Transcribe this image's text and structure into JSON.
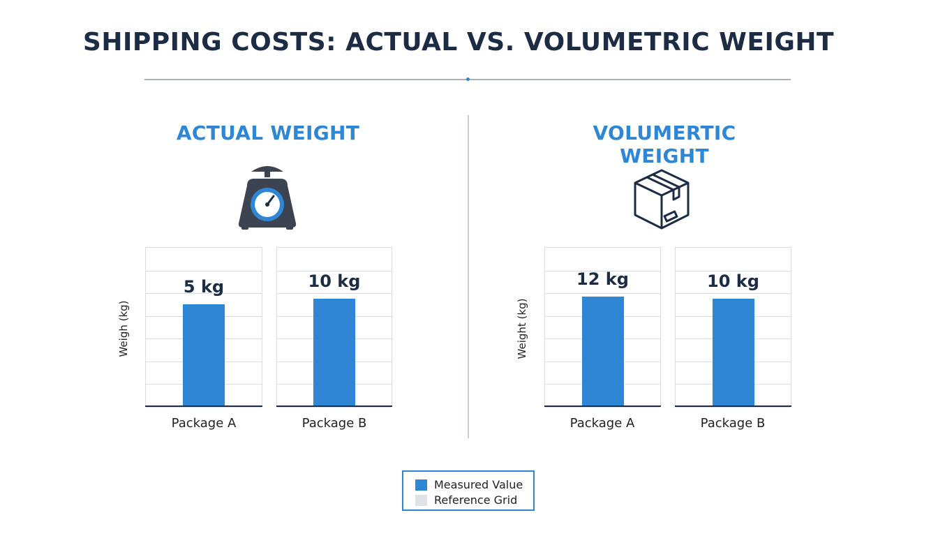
{
  "title": "SHIPPING COSTS: ACTUAL VS. VOLUMETRIC WEIGHT",
  "colors": {
    "bar": "#2e86d4",
    "grid": "#d8dde2",
    "dark": "#1c2c44"
  },
  "legend": {
    "items": [
      {
        "label": "Measured Value",
        "color": "#2e86d4"
      },
      {
        "label": "Reference Grid",
        "color": "#dfe3e7"
      }
    ]
  },
  "chart_data": [
    {
      "type": "bar",
      "title": "ACTUAL WEIGHT",
      "icon": "scale-icon",
      "ylabel": "Weigh (kg)",
      "categories": [
        "Package A",
        "Package B"
      ],
      "values": [
        5,
        10
      ],
      "data_labels": [
        "5 kg",
        "10 kg"
      ],
      "grid": true
    },
    {
      "type": "bar",
      "title": "VOLUMERTIC WEIGHT",
      "icon": "box-icon",
      "ylabel": "Weight (kg)",
      "categories": [
        "Package A",
        "Package B"
      ],
      "values": [
        12,
        10
      ],
      "data_labels": [
        "12 kg",
        "10 kg"
      ],
      "grid": true
    }
  ]
}
